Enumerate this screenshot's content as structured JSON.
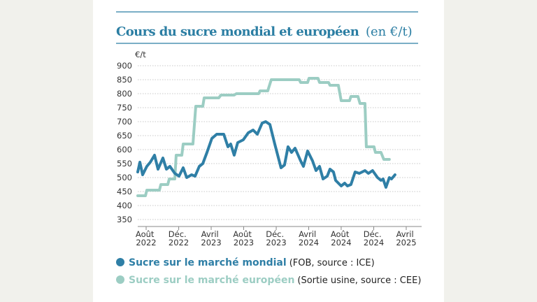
{
  "chart_data": {
    "type": "line",
    "title": "Cours du sucre mondial et européen",
    "title_unit": "(en €/t)",
    "y_label": "€/t",
    "ylim": [
      325,
      900
    ],
    "yticks": [
      350,
      400,
      450,
      500,
      550,
      600,
      650,
      700,
      750,
      800,
      850,
      900
    ],
    "xlim": [
      2022.497,
      2025.408
    ],
    "xticks": [
      {
        "value": 2022.583,
        "label": "Août 2022"
      },
      {
        "value": 2022.917,
        "label": "Déc. 2022"
      },
      {
        "value": 2023.25,
        "label": "Avril 2023"
      },
      {
        "value": 2023.583,
        "label": "Août 2023"
      },
      {
        "value": 2023.917,
        "label": "Déc. 2023"
      },
      {
        "value": 2024.25,
        "label": "Avril 2024"
      },
      {
        "value": 2024.583,
        "label": "Août 2024"
      },
      {
        "value": 2024.917,
        "label": "Déc. 2024"
      },
      {
        "value": 2025.25,
        "label": "Avril 2025"
      }
    ],
    "grid": true,
    "series": [
      {
        "name": "Sucre sur le marché mondial",
        "source": "(FOB, source : ICE)",
        "color": "#2f7fa6",
        "x": [
          2022.497,
          2022.519,
          2022.547,
          2022.59,
          2022.626,
          2022.669,
          2022.705,
          2022.755,
          2022.791,
          2022.827,
          2022.877,
          2022.92,
          2022.963,
          2022.999,
          2023.049,
          2023.085,
          2023.128,
          2023.164,
          2023.207,
          2023.257,
          2023.307,
          2023.379,
          2023.422,
          2023.45,
          2023.486,
          2023.522,
          2023.579,
          2023.63,
          2023.68,
          2023.723,
          2023.773,
          2023.809,
          2023.852,
          2023.902,
          2023.966,
          2024.002,
          2024.038,
          2024.074,
          2024.11,
          2024.167,
          2024.196,
          2024.239,
          2024.289,
          2024.325,
          2024.361,
          2024.397,
          2024.44,
          2024.468,
          2024.504,
          2024.526,
          2024.583,
          2024.619,
          2024.647,
          2024.683,
          2024.726,
          2024.769,
          2024.827,
          2024.862,
          2024.905,
          2024.956,
          2024.991,
          2025.013,
          2025.042,
          2025.077,
          2025.099,
          2025.135
        ],
        "values": [
          520,
          555,
          510,
          540,
          555,
          580,
          530,
          570,
          530,
          540,
          515,
          505,
          535,
          500,
          510,
          505,
          540,
          550,
          590,
          640,
          655,
          655,
          610,
          620,
          580,
          625,
          635,
          660,
          670,
          655,
          695,
          700,
          690,
          620,
          535,
          545,
          610,
          590,
          605,
          560,
          540,
          595,
          560,
          525,
          540,
          495,
          505,
          530,
          520,
          490,
          470,
          480,
          470,
          475,
          520,
          515,
          525,
          515,
          525,
          500,
          490,
          495,
          465,
          500,
          495,
          510
        ]
      },
      {
        "name": "Sucre sur le marché européen",
        "source": "(Sortie usine, source : CEE)",
        "color": "#9ccdc3",
        "x": [
          2022.497,
          2022.576,
          2022.59,
          2022.719,
          2022.734,
          2022.805,
          2022.82,
          2022.877,
          2022.891,
          2022.949,
          2022.963,
          2023.063,
          2023.092,
          2023.164,
          2023.178,
          2023.328,
          2023.35,
          2023.486,
          2023.508,
          2023.737,
          2023.751,
          2023.83,
          2023.866,
          2024.153,
          2024.167,
          2024.239,
          2024.253,
          2024.346,
          2024.361,
          2024.454,
          2024.468,
          2024.554,
          2024.583,
          2024.669,
          2024.683,
          2024.755,
          2024.776,
          2024.827,
          2024.841,
          2024.92,
          2024.934,
          2024.991,
          2025.02,
          2025.077
        ],
        "values": [
          435,
          435,
          455,
          455,
          475,
          475,
          495,
          495,
          580,
          580,
          620,
          620,
          755,
          755,
          785,
          785,
          795,
          795,
          800,
          800,
          810,
          810,
          850,
          850,
          840,
          840,
          855,
          855,
          840,
          840,
          830,
          830,
          775,
          775,
          790,
          790,
          765,
          765,
          610,
          610,
          590,
          590,
          565,
          565
        ]
      }
    ]
  }
}
